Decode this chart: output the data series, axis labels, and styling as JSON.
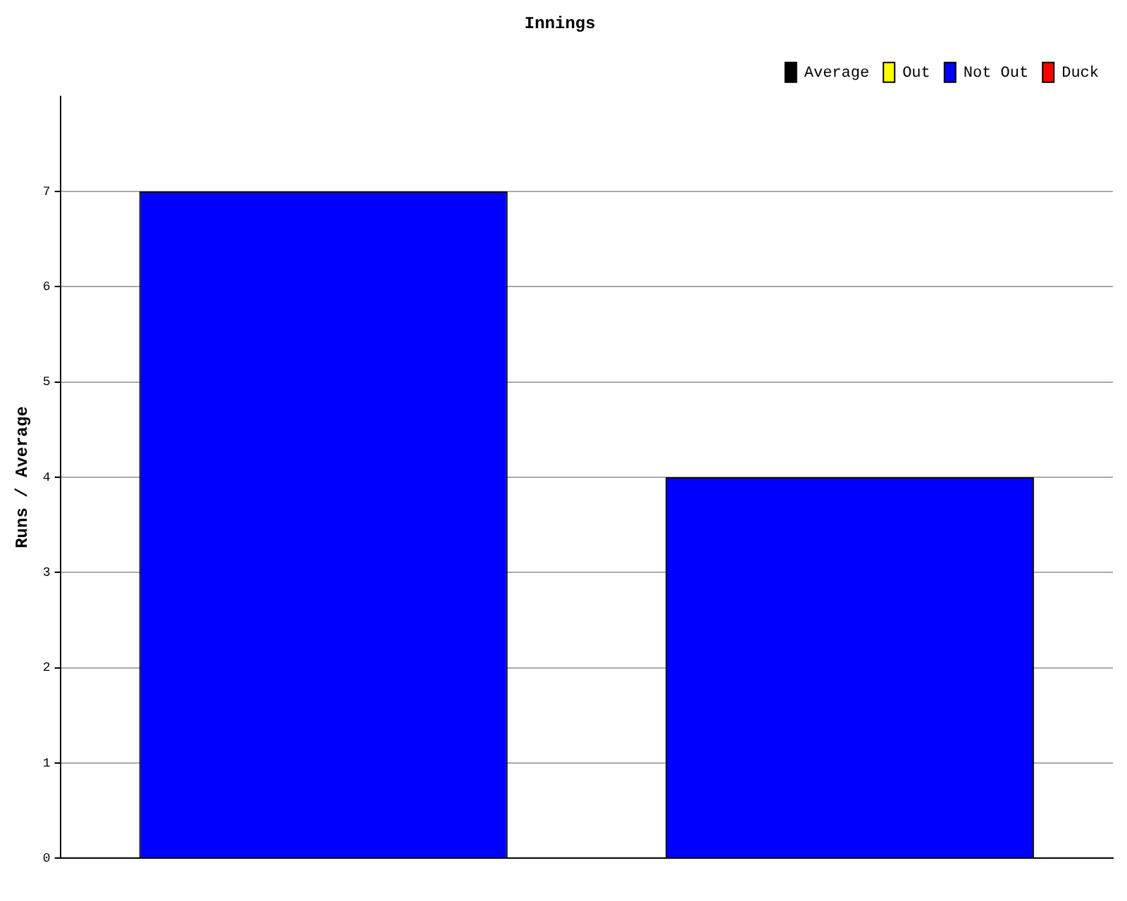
{
  "chart_data": {
    "type": "bar",
    "title": "Innings",
    "ylabel": "Runs / Average",
    "categories": [
      null,
      null
    ],
    "stacked": true,
    "series": [
      {
        "name": "Average",
        "color": "#000000",
        "values": [
          null,
          null
        ]
      },
      {
        "name": "Out",
        "color": "#ffff00",
        "values": [
          null,
          null
        ]
      },
      {
        "name": "Not Out",
        "color": "#0000ff",
        "values": [
          7,
          4
        ]
      },
      {
        "name": "Duck",
        "color": "#ff0000",
        "values": [
          null,
          null
        ]
      }
    ],
    "ylim": [
      0,
      8
    ],
    "yticks": [
      0,
      1,
      2,
      3,
      4,
      5,
      6,
      7
    ],
    "grid": "y",
    "legend": "top right"
  }
}
